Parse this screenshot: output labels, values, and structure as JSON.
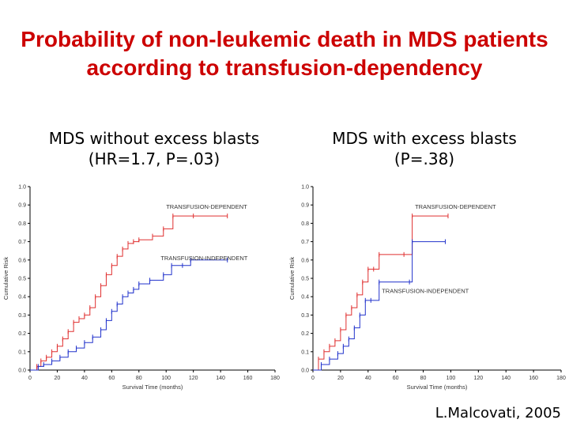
{
  "slide": {
    "title": "Probability of non-leukemic death in MDS patients according to transfusion-dependency",
    "credit": "L.Malcovati, 2005"
  },
  "chart_data": [
    {
      "type": "line",
      "subtitle_line1": "MDS without excess blasts",
      "subtitle_line2": "(HR=1.7, P=.03)",
      "xlabel": "Survival Time (months)",
      "ylabel": "Cumulative Risk",
      "xlim": [
        0,
        180
      ],
      "ylim": [
        0,
        1.0
      ],
      "xticks": [
        "0",
        "20",
        "40",
        "60",
        "80",
        "100",
        "120",
        "140",
        "160",
        "180"
      ],
      "yticks": [
        "0.0",
        "0.1",
        "0.2",
        "0.3",
        "0.4",
        "0.5",
        "0.6",
        "0.7",
        "0.8",
        "0.9",
        "1.0"
      ],
      "grid": false,
      "series": [
        {
          "name": "TRANSFUSION-DEPENDENT",
          "color": "#e03030",
          "label_at": [
            100,
            0.88
          ],
          "points": [
            [
              0,
              0
            ],
            [
              5,
              0.02
            ],
            [
              8,
              0.05
            ],
            [
              12,
              0.07
            ],
            [
              16,
              0.1
            ],
            [
              20,
              0.13
            ],
            [
              24,
              0.17
            ],
            [
              28,
              0.21
            ],
            [
              32,
              0.26
            ],
            [
              36,
              0.28
            ],
            [
              40,
              0.3
            ],
            [
              44,
              0.34
            ],
            [
              48,
              0.4
            ],
            [
              52,
              0.46
            ],
            [
              56,
              0.52
            ],
            [
              60,
              0.57
            ],
            [
              64,
              0.62
            ],
            [
              68,
              0.66
            ],
            [
              72,
              0.69
            ],
            [
              76,
              0.7
            ],
            [
              80,
              0.71
            ],
            [
              90,
              0.73
            ],
            [
              98,
              0.77
            ],
            [
              105,
              0.84
            ],
            [
              120,
              0.84
            ],
            [
              145,
              0.84
            ]
          ]
        },
        {
          "name": "TRANSFUSION-INDEPENDENT",
          "color": "#2233cc",
          "label_at": [
            96,
            0.6
          ],
          "points": [
            [
              0,
              0
            ],
            [
              6,
              0.02
            ],
            [
              10,
              0.03
            ],
            [
              16,
              0.05
            ],
            [
              22,
              0.07
            ],
            [
              28,
              0.1
            ],
            [
              34,
              0.12
            ],
            [
              40,
              0.15
            ],
            [
              46,
              0.18
            ],
            [
              52,
              0.22
            ],
            [
              56,
              0.27
            ],
            [
              60,
              0.32
            ],
            [
              64,
              0.36
            ],
            [
              68,
              0.4
            ],
            [
              72,
              0.42
            ],
            [
              76,
              0.44
            ],
            [
              80,
              0.47
            ],
            [
              88,
              0.49
            ],
            [
              98,
              0.52
            ],
            [
              104,
              0.57
            ],
            [
              112,
              0.57
            ],
            [
              118,
              0.6
            ],
            [
              145,
              0.6
            ]
          ]
        }
      ]
    },
    {
      "type": "line",
      "subtitle_line1": "MDS with excess blasts",
      "subtitle_line2": "(P=.38)",
      "xlabel": "Survival Time (months)",
      "ylabel": "Cumulative Risk",
      "xlim": [
        0,
        180
      ],
      "ylim": [
        0,
        1.0
      ],
      "xticks": [
        "0",
        "20",
        "40",
        "60",
        "80",
        "100",
        "120",
        "140",
        "160",
        "180"
      ],
      "yticks": [
        "0.0",
        "0.1",
        "0.2",
        "0.3",
        "0.4",
        "0.5",
        "0.6",
        "0.7",
        "0.8",
        "0.9",
        "1.0"
      ],
      "grid": false,
      "series": [
        {
          "name": "TRANSFUSION-DEPENDENT",
          "color": "#e03030",
          "label_at": [
            74,
            0.88
          ],
          "points": [
            [
              0,
              0
            ],
            [
              4,
              0.06
            ],
            [
              8,
              0.1
            ],
            [
              12,
              0.13
            ],
            [
              16,
              0.16
            ],
            [
              20,
              0.22
            ],
            [
              24,
              0.3
            ],
            [
              28,
              0.34
            ],
            [
              32,
              0.41
            ],
            [
              36,
              0.48
            ],
            [
              40,
              0.55
            ],
            [
              44,
              0.55
            ],
            [
              48,
              0.63
            ],
            [
              66,
              0.63
            ],
            [
              72,
              0.84
            ],
            [
              98,
              0.84
            ]
          ]
        },
        {
          "name": "TRANSFUSION-INDEPENDENT",
          "color": "#2233cc",
          "label_at": [
            50,
            0.42
          ],
          "points": [
            [
              0,
              0
            ],
            [
              6,
              0.03
            ],
            [
              12,
              0.06
            ],
            [
              18,
              0.09
            ],
            [
              22,
              0.13
            ],
            [
              26,
              0.17
            ],
            [
              30,
              0.23
            ],
            [
              34,
              0.3
            ],
            [
              38,
              0.38
            ],
            [
              42,
              0.38
            ],
            [
              48,
              0.48
            ],
            [
              70,
              0.48
            ],
            [
              72,
              0.7
            ],
            [
              96,
              0.7
            ]
          ]
        }
      ]
    }
  ]
}
